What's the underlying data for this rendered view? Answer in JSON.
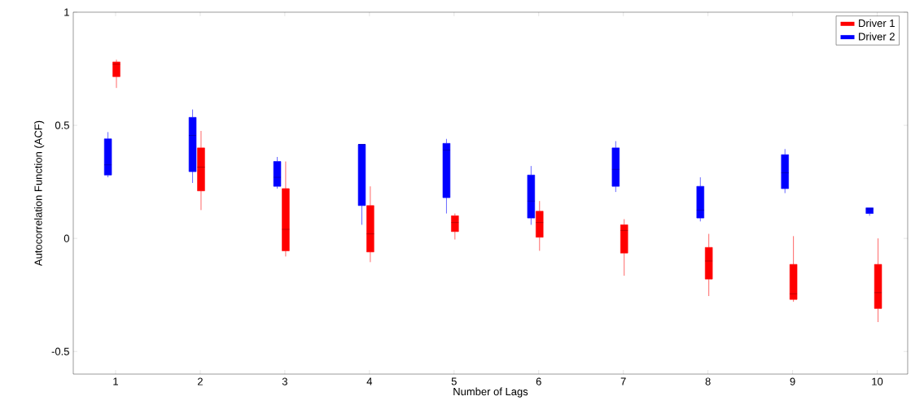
{
  "chart_data": {
    "type": "box",
    "xlabel": "Number of Lags",
    "ylabel": "Autocorrelation Function (ACF)",
    "categories": [
      "1",
      "2",
      "3",
      "4",
      "5",
      "6",
      "7",
      "8",
      "9",
      "10"
    ],
    "ylim": [
      -0.6,
      1
    ],
    "yticks": [
      -0.5,
      0,
      0.5,
      1
    ],
    "legend": "top right",
    "series": [
      {
        "name": "Driver 1",
        "color": "#ff0000",
        "boxes": [
          {
            "low": 0.665,
            "q1": 0.715,
            "median": 0.77,
            "q3": 0.78,
            "high": 0.79
          },
          {
            "low": 0.125,
            "q1": 0.21,
            "median": 0.315,
            "q3": 0.4,
            "high": 0.475
          },
          {
            "low": -0.08,
            "q1": -0.055,
            "median": 0.04,
            "q3": 0.22,
            "high": 0.34
          },
          {
            "low": -0.105,
            "q1": -0.06,
            "median": 0.02,
            "q3": 0.145,
            "high": 0.23
          },
          {
            "low": -0.005,
            "q1": 0.03,
            "median": 0.07,
            "q3": 0.1,
            "high": 0.11
          },
          {
            "low": -0.055,
            "q1": 0.005,
            "median": 0.07,
            "q3": 0.12,
            "high": 0.165
          },
          {
            "low": -0.165,
            "q1": -0.065,
            "median": 0.035,
            "q3": 0.06,
            "high": 0.085
          },
          {
            "low": -0.255,
            "q1": -0.18,
            "median": -0.1,
            "q3": -0.04,
            "high": 0.02
          },
          {
            "low": -0.28,
            "q1": -0.27,
            "median": -0.245,
            "q3": -0.115,
            "high": 0.01
          },
          {
            "low": -0.37,
            "q1": -0.31,
            "median": -0.24,
            "q3": -0.115,
            "high": 0.0
          }
        ]
      },
      {
        "name": "Driver 2",
        "color": "#0000ff",
        "boxes": [
          {
            "low": 0.27,
            "q1": 0.28,
            "median": 0.325,
            "q3": 0.44,
            "high": 0.47
          },
          {
            "low": 0.245,
            "q1": 0.295,
            "median": 0.455,
            "q3": 0.535,
            "high": 0.57
          },
          {
            "low": 0.22,
            "q1": 0.23,
            "median": 0.27,
            "q3": 0.34,
            "high": 0.36
          },
          {
            "low": 0.06,
            "q1": 0.145,
            "median": 0.415,
            "q3": 0.415,
            "high": 0.415
          },
          {
            "low": 0.11,
            "q1": 0.18,
            "median": 0.39,
            "q3": 0.42,
            "high": 0.44
          },
          {
            "low": 0.06,
            "q1": 0.09,
            "median": 0.165,
            "q3": 0.28,
            "high": 0.32
          },
          {
            "low": 0.205,
            "q1": 0.23,
            "median": 0.305,
            "q3": 0.4,
            "high": 0.43
          },
          {
            "low": 0.075,
            "q1": 0.09,
            "median": 0.125,
            "q3": 0.23,
            "high": 0.27
          },
          {
            "low": 0.2,
            "q1": 0.22,
            "median": 0.29,
            "q3": 0.37,
            "high": 0.395
          },
          {
            "low": 0.1,
            "q1": 0.11,
            "median": 0.13,
            "q3": 0.135,
            "high": 0.135
          }
        ]
      }
    ]
  }
}
